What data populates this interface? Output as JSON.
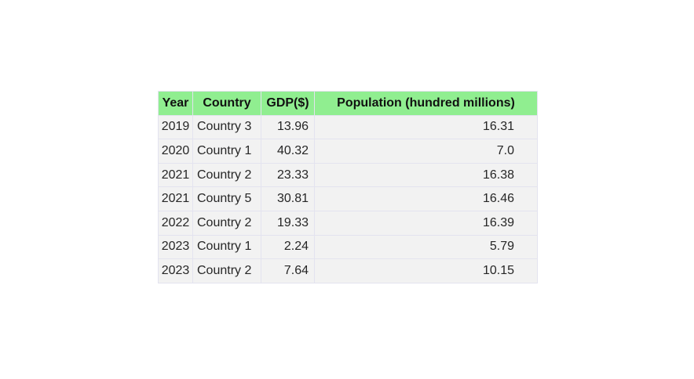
{
  "chart_data": {
    "type": "table",
    "columns": [
      "Year",
      "Country",
      "GDP($)",
      "Population (hundred millions)"
    ],
    "rows": [
      [
        "2019",
        "Country 3",
        "13.96",
        "16.31"
      ],
      [
        "2020",
        "Country 1",
        "40.32",
        "7.0"
      ],
      [
        "2021",
        "Country 2",
        "23.33",
        "16.38"
      ],
      [
        "2021",
        "Country 5",
        "30.81",
        "16.46"
      ],
      [
        "2022",
        "Country 2",
        "19.33",
        "16.39"
      ],
      [
        "2023",
        "Country 1",
        "2.24",
        "5.79"
      ],
      [
        "2023",
        "Country 2",
        "7.64",
        "10.15"
      ]
    ]
  },
  "colors": {
    "header_background": "#90ee90",
    "cell_background": "#f2f2f2",
    "border": "#e3e3ef"
  }
}
